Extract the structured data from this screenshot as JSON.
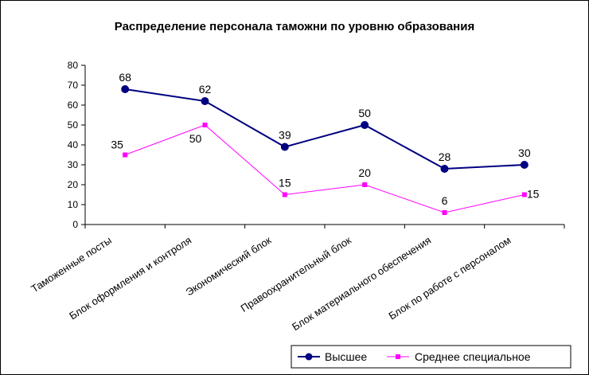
{
  "chart_data": {
    "type": "line",
    "title": "Распределение персонала таможни по уровню образования",
    "xlabel": "",
    "ylabel": "",
    "categories": [
      "Таможенные посты",
      "Блок оформления и контроля",
      "Экономический блок",
      "Правоохранительный блок",
      "Блок материального обеспечения",
      "Блок по работе с персоналом"
    ],
    "series": [
      {
        "name": "Высшее",
        "values": [
          68,
          62,
          39,
          50,
          28,
          30
        ],
        "color": "#000080",
        "marker": "circle"
      },
      {
        "name": "Среднее специальное",
        "values": [
          35,
          50,
          15,
          20,
          6,
          15
        ],
        "color": "#FF00FF",
        "marker": "square"
      }
    ],
    "ylim": [
      0,
      80
    ],
    "yticks": [
      0,
      10,
      20,
      30,
      40,
      50,
      60,
      70,
      80
    ],
    "grid": false,
    "legend_position": "bottom-right"
  }
}
